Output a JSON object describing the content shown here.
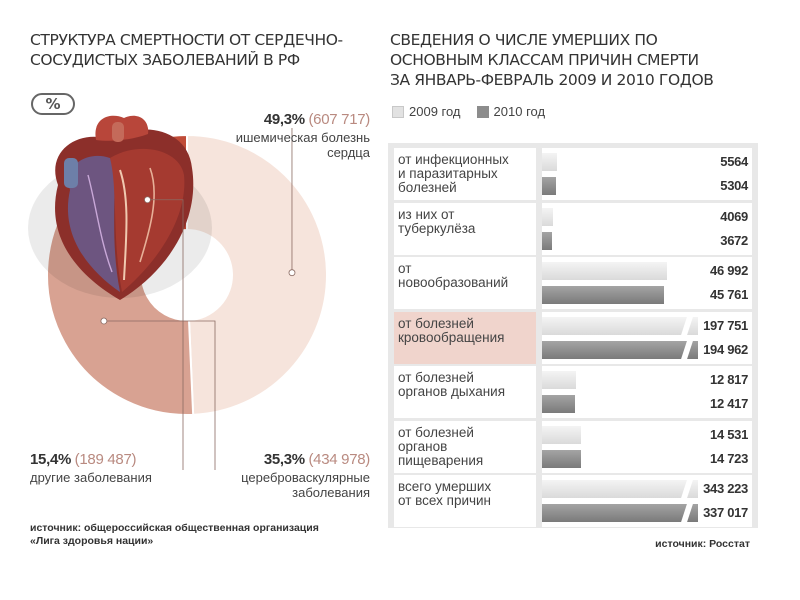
{
  "left": {
    "title_line1": "Структура смертности от сердечно-",
    "title_line2": "сосудистых заболеваний в РФ",
    "unit_badge": "%",
    "source_line1": "источник: общероссийская общественная организация",
    "source_line2": "«Лига здоровья нации»"
  },
  "right": {
    "title_line1": "Сведения о числе умерших по",
    "title_line2": "основным классам причин смерти",
    "title_line3": "за январь-февраль 2009 и 2010 годов",
    "source": "источник: Росстат"
  },
  "chart_data": [
    {
      "type": "pie",
      "title": "Структура смертности от сердечно-сосудистых заболеваний в РФ",
      "unit": "%",
      "slices": [
        {
          "key": "ish",
          "label_line1": "ишемическая болезнь",
          "label_line2": "сердца",
          "percent_text": "49,3%",
          "count_text": "(607 717)",
          "value": 49.3,
          "color": "#f6e4dc"
        },
        {
          "key": "cer",
          "label_line1": "цереброваскулярные",
          "label_line2": "заболевания",
          "percent_text": "35,3%",
          "count_text": "(434 978)",
          "value": 35.3,
          "color": "#d8a292"
        },
        {
          "key": "oth",
          "label_line1": "другие заболевания",
          "label_line2": "",
          "percent_text": "15,4%",
          "count_text": "(189 487)",
          "value": 15.4,
          "color": "#c04c38"
        }
      ]
    },
    {
      "type": "bar",
      "title": "Сведения о числе умерших по основным классам причин смерти за январь-февраль 2009 и 2010 годов",
      "legend": [
        "2009 год",
        "2010 год"
      ],
      "legend_position": "top-left",
      "scale_max": 60000,
      "truncated_from": 40000,
      "categories": [
        {
          "label": [
            "от инфекционных",
            "и паразитарных",
            "болезней"
          ],
          "v2009": 5564,
          "v2010": 5304,
          "t2009": "5564",
          "t2010": "5304",
          "highlight": false,
          "broken": false
        },
        {
          "label": [
            "из них от",
            "туберкулёза"
          ],
          "v2009": 4069,
          "v2010": 3672,
          "t2009": "4069",
          "t2010": "3672",
          "highlight": false,
          "broken": false
        },
        {
          "label": [
            "от",
            "новообразований"
          ],
          "v2009": 46992,
          "v2010": 45761,
          "t2009": "46 992",
          "t2010": "45 761",
          "highlight": false,
          "broken": false
        },
        {
          "label": [
            "от болезней",
            "кровообращения"
          ],
          "v2009": 197751,
          "v2010": 194962,
          "t2009": "197 751",
          "t2010": "194 962",
          "highlight": true,
          "broken": true
        },
        {
          "label": [
            "от болезней",
            "органов дыхания"
          ],
          "v2009": 12817,
          "v2010": 12417,
          "t2009": "12 817",
          "t2010": "12 417",
          "highlight": false,
          "broken": false
        },
        {
          "label": [
            "от болезней",
            "органов",
            "пищеварения"
          ],
          "v2009": 14531,
          "v2010": 14723,
          "t2009": "14 531",
          "t2010": "14 723",
          "highlight": false,
          "broken": false
        },
        {
          "label": [
            "всего умерших",
            "от всех причин"
          ],
          "v2009": 343223,
          "v2010": 337017,
          "t2009": "343 223",
          "t2010": "337 017",
          "highlight": false,
          "broken": true
        }
      ]
    }
  ]
}
